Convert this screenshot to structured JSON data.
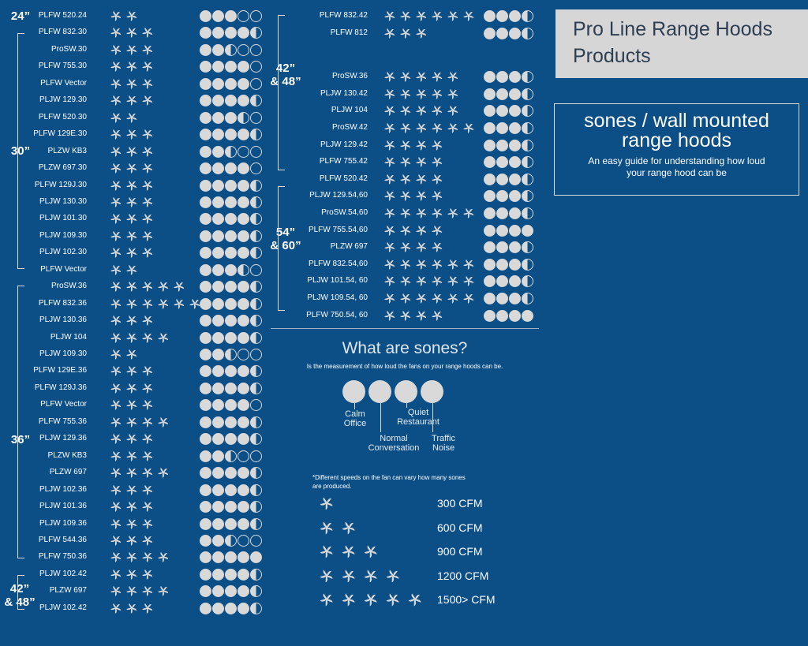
{
  "header": {
    "title_line1": "Pro Line Range Hoods",
    "title_line2": "Products"
  },
  "info": {
    "heading_line1": "sones / wall mounted",
    "heading_line2": "range hoods",
    "subtitle_line1": "An easy guide for understanding how loud",
    "subtitle_line2": "your range hood can be"
  },
  "size_groups": {
    "g24": "24”",
    "g30": "30”",
    "g36": "36”",
    "g42a_line1": "42”",
    "g42a_line2": "& 48”",
    "g42b_line1": "42”",
    "g42b_line2": "& 48”",
    "g54_line1": "54”",
    "g54_line2": "& 60”"
  },
  "products_left": [
    {
      "name": "PLFW 520.24",
      "fans": 2,
      "sones": [
        1,
        1,
        1,
        0,
        0
      ]
    },
    {
      "name": "PLFW 832.30",
      "fans": 3,
      "sones": [
        1,
        1,
        1,
        1,
        0.5
      ]
    },
    {
      "name": "ProSW.30",
      "fans": 3,
      "sones": [
        1,
        1,
        0.5,
        0,
        0
      ]
    },
    {
      "name": "PLFW 755.30",
      "fans": 3,
      "sones": [
        1,
        1,
        1,
        1,
        0
      ]
    },
    {
      "name": "PLFW Vector",
      "fans": 3,
      "sones": [
        1,
        1,
        1,
        1,
        0
      ]
    },
    {
      "name": "PLJW 129.30",
      "fans": 3,
      "sones": [
        1,
        1,
        1,
        1,
        0.5
      ]
    },
    {
      "name": "PLFW 520.30",
      "fans": 2,
      "sones": [
        1,
        1,
        1,
        0.5,
        0
      ]
    },
    {
      "name": "PLFW 129E.30",
      "fans": 3,
      "sones": [
        1,
        1,
        1,
        1,
        0.5
      ]
    },
    {
      "name": "PLZW KB3",
      "fans": 3,
      "sones": [
        1,
        1,
        0.5,
        0,
        0
      ]
    },
    {
      "name": "PLZW 697.30",
      "fans": 3,
      "sones": [
        1,
        1,
        1,
        1,
        0
      ]
    },
    {
      "name": "PLFW 129J.30",
      "fans": 3,
      "sones": [
        1,
        1,
        1,
        1,
        0.5
      ]
    },
    {
      "name": "PLJW 130.30",
      "fans": 3,
      "sones": [
        1,
        1,
        1,
        1,
        0.5
      ]
    },
    {
      "name": "PLJW 101.30",
      "fans": 3,
      "sones": [
        1,
        1,
        1,
        1,
        0.5
      ]
    },
    {
      "name": "PLJW 109.30",
      "fans": 3,
      "sones": [
        1,
        1,
        1,
        1,
        0.5
      ]
    },
    {
      "name": "PLJW 102.30",
      "fans": 3,
      "sones": [
        1,
        1,
        1,
        1,
        0.5
      ]
    },
    {
      "name": "PLFW Vector",
      "fans": 2,
      "sones": [
        1,
        1,
        1,
        0.5,
        0
      ]
    },
    {
      "name": "ProSW.36",
      "fans": 5,
      "sones": [
        1,
        1,
        1,
        1,
        0.5
      ]
    },
    {
      "name": "PLFW 832.36",
      "fans": 6,
      "sones": [
        1,
        1,
        1,
        1,
        0.5
      ]
    },
    {
      "name": "PLJW 130.36",
      "fans": 3,
      "sones": [
        1,
        1,
        1,
        1,
        0.5
      ]
    },
    {
      "name": "PLJW 104",
      "fans": 4,
      "sones": [
        1,
        1,
        1,
        1,
        0.5
      ]
    },
    {
      "name": "PLJW 109.30",
      "fans": 2,
      "sones": [
        1,
        1,
        0.5,
        0,
        0
      ]
    },
    {
      "name": "PLFW 129E.36",
      "fans": 3,
      "sones": [
        1,
        1,
        1,
        1,
        0.5
      ]
    },
    {
      "name": "PLFW 129J.36",
      "fans": 3,
      "sones": [
        1,
        1,
        1,
        1,
        0.5
      ]
    },
    {
      "name": "PLFW Vector",
      "fans": 3,
      "sones": [
        1,
        1,
        1,
        1,
        0
      ]
    },
    {
      "name": "PLFW 755.36",
      "fans": 4,
      "sones": [
        1,
        1,
        1,
        1,
        0.5
      ]
    },
    {
      "name": "PLJW 129.36",
      "fans": 3,
      "sones": [
        1,
        1,
        1,
        1,
        0.5
      ]
    },
    {
      "name": "PLZW KB3",
      "fans": 3,
      "sones": [
        1,
        1,
        0.5,
        0,
        0
      ]
    },
    {
      "name": "PLZW 697",
      "fans": 4,
      "sones": [
        1,
        1,
        1,
        1,
        0.5
      ]
    },
    {
      "name": "PLJW 102.36",
      "fans": 3,
      "sones": [
        1,
        1,
        1,
        1,
        0.5
      ]
    },
    {
      "name": "PLJW 101.36",
      "fans": 3,
      "sones": [
        1,
        1,
        1,
        1,
        0.5
      ]
    },
    {
      "name": "PLJW 109.36",
      "fans": 3,
      "sones": [
        1,
        1,
        1,
        1,
        0.5
      ]
    },
    {
      "name": "PLFW 544.36",
      "fans": 3,
      "sones": [
        1,
        1,
        0.5,
        0,
        0
      ]
    },
    {
      "name": "PLFW 750.36",
      "fans": 4,
      "sones": [
        1,
        1,
        1,
        1,
        1
      ]
    },
    {
      "name": "PLJW 102.42",
      "fans": 3,
      "sones": [
        1,
        1,
        1,
        1,
        0.5
      ]
    },
    {
      "name": "PLZW 697",
      "fans": 4,
      "sones": [
        1,
        1,
        1,
        1,
        0.5
      ]
    },
    {
      "name": "PLJW 102.42",
      "fans": 3,
      "sones": [
        1,
        1,
        1,
        1,
        0.5
      ]
    }
  ],
  "products_right": [
    {
      "name": "PLFW 832.42",
      "fans": 6,
      "sones": [
        1,
        1,
        1,
        0.5
      ]
    },
    {
      "name": "PLFW 812",
      "fans": 3,
      "sones": [
        1,
        1,
        1,
        0.5
      ]
    },
    {
      "name": "ProSW.36",
      "fans": 5,
      "sones": [
        1,
        1,
        1,
        0.5
      ]
    },
    {
      "name": "PLJW 130.42",
      "fans": 5,
      "sones": [
        1,
        1,
        1,
        0.5
      ]
    },
    {
      "name": "PLJW 104",
      "fans": 5,
      "sones": [
        1,
        1,
        1,
        0.5
      ]
    },
    {
      "name": "ProSW.42",
      "fans": 6,
      "sones": [
        1,
        1,
        1,
        0.5
      ]
    },
    {
      "name": "PLJW 129.42",
      "fans": 4,
      "sones": [
        1,
        1,
        1,
        0.5
      ]
    },
    {
      "name": "PLFW 755.42",
      "fans": 4,
      "sones": [
        1,
        1,
        1,
        0.5
      ]
    },
    {
      "name": "PLFW 520.42",
      "fans": 4,
      "sones": [
        1,
        1,
        1,
        0.5
      ]
    },
    {
      "name": "PLJW 129.54,60",
      "fans": 4,
      "sones": [
        1,
        1,
        1,
        0.5
      ]
    },
    {
      "name": "ProSW.54,60",
      "fans": 6,
      "sones": [
        1,
        1,
        1,
        0.5
      ]
    },
    {
      "name": "PLFW 755.54,60",
      "fans": 4,
      "sones": [
        1,
        1,
        1,
        1
      ]
    },
    {
      "name": "PLZW 697",
      "fans": 4,
      "sones": [
        1,
        1,
        1,
        0.5
      ]
    },
    {
      "name": "PLFW 832.54,60",
      "fans": 6,
      "sones": [
        1,
        1,
        1,
        0.5
      ]
    },
    {
      "name": "PLJW 101.54, 60",
      "fans": 6,
      "sones": [
        1,
        1,
        1,
        0.5
      ]
    },
    {
      "name": "PLJW 109.54, 60",
      "fans": 6,
      "sones": [
        1,
        1,
        1,
        0.5
      ]
    },
    {
      "name": "PLFW 750.54, 60",
      "fans": 4,
      "sones": [
        1,
        1,
        1,
        1
      ]
    }
  ],
  "what": {
    "title": "What are sones?",
    "subtitle": "Is the measurement of how loud the fans on your range hoods can be.",
    "levels": [
      {
        "line1": "Calm",
        "line2": "Office"
      },
      {
        "line1": "Normal",
        "line2": "Conversation"
      },
      {
        "line1": "Quiet",
        "line2": "Restaurant"
      },
      {
        "line1": "Traffic",
        "line2": "Noise"
      }
    ]
  },
  "cfm": {
    "note_line1": "*Different speeds on the fan can vary how many sones",
    "note_line2": "are produced.",
    "rows": [
      {
        "fans": 1,
        "label": "300 CFM"
      },
      {
        "fans": 2,
        "label": "600 CFM"
      },
      {
        "fans": 3,
        "label": "900 CFM"
      },
      {
        "fans": 4,
        "label": "1200 CFM"
      },
      {
        "fans": 5,
        "label": "1500> CFM"
      }
    ]
  },
  "colors": {
    "background": "#0b4f86",
    "icon": "#d9d9d9",
    "title_box": "#d6d6d6",
    "title_text": "#2e3e52"
  },
  "icons": {
    "fan": "fan-icon",
    "sone": "sone-dot-icon"
  }
}
